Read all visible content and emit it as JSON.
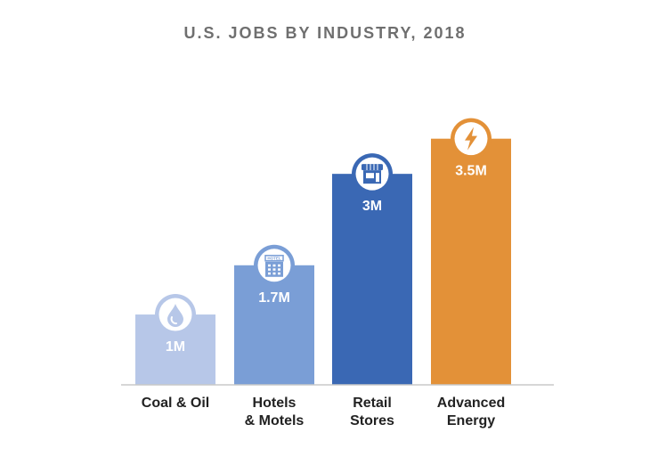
{
  "chart_data": {
    "type": "bar",
    "title": "U.S. JOBS BY INDUSTRY, 2018",
    "xlabel": "",
    "ylabel": "",
    "categories": [
      [
        "Coal & Oil"
      ],
      [
        "Hotels",
        "& Motels"
      ],
      [
        "Retail",
        "Stores"
      ],
      [
        "Advanced",
        "Energy"
      ]
    ],
    "values": [
      1,
      1.7,
      3,
      3.5
    ],
    "value_labels": [
      "1M",
      "1.7M",
      "3M",
      "3.5M"
    ],
    "unit": "million jobs",
    "ylim": [
      0,
      3.8
    ],
    "grid": false,
    "legend": "none",
    "colors": [
      "#b7c7e8",
      "#7a9ed6",
      "#3a68b4",
      "#e39138"
    ],
    "icons": [
      "oil-drop-icon",
      "hotel-icon",
      "store-icon",
      "lightning-bolt-icon"
    ],
    "hotel_sign_text": "HOTEL"
  }
}
